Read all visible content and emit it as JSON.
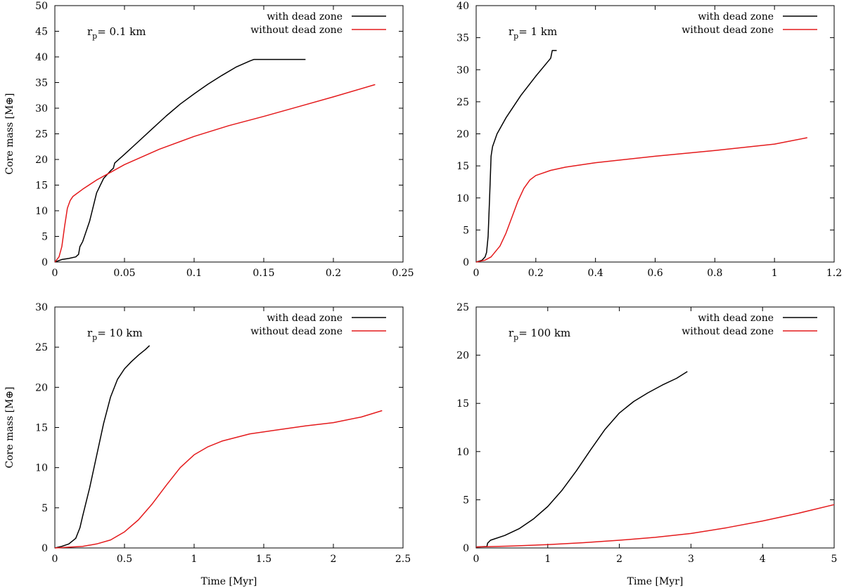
{
  "chart_data": [
    {
      "type": "line",
      "annotation": {
        "main": "r",
        "sub": "p",
        "rest": "= 0.1 km"
      },
      "xlabel": "",
      "ylabel": "Core mass [M⊕]",
      "xlim": [
        0,
        0.25
      ],
      "ylim": [
        0,
        50
      ],
      "xticks": [
        0,
        0.05,
        0.1,
        0.15,
        0.2,
        0.25
      ],
      "xtick_labels": [
        "0",
        "0.05",
        "0.1",
        "0.15",
        "0.2",
        "0.25"
      ],
      "yticks": [
        0,
        5,
        10,
        15,
        20,
        25,
        30,
        35,
        40,
        45,
        50
      ],
      "ytick_labels": [
        "0",
        "5",
        "10",
        "15",
        "20",
        "25",
        "30",
        "35",
        "40",
        "45",
        "50"
      ],
      "legend_position": "top-right",
      "series": [
        {
          "name": "with dead zone",
          "color": "#000000",
          "x": [
            0,
            0.005,
            0.01,
            0.015,
            0.017,
            0.018,
            0.02,
            0.025,
            0.03,
            0.035,
            0.04,
            0.042,
            0.043,
            0.05,
            0.06,
            0.07,
            0.08,
            0.09,
            0.1,
            0.11,
            0.12,
            0.13,
            0.14,
            0.143,
            0.18
          ],
          "y": [
            0,
            0.5,
            0.7,
            1.0,
            1.5,
            3.0,
            4.0,
            8.0,
            13.5,
            16.3,
            17.8,
            18.3,
            19.3,
            21.0,
            23.5,
            26.0,
            28.5,
            30.8,
            32.8,
            34.7,
            36.4,
            38.0,
            39.2,
            39.5,
            39.5
          ]
        },
        {
          "name": "without dead zone",
          "color": "#e41a1c",
          "x": [
            0,
            0.003,
            0.005,
            0.007,
            0.009,
            0.011,
            0.013,
            0.015,
            0.02,
            0.03,
            0.04,
            0.05,
            0.075,
            0.1,
            0.125,
            0.15,
            0.175,
            0.2,
            0.23
          ],
          "y": [
            0,
            1.0,
            3.0,
            7.0,
            10.5,
            12.0,
            12.8,
            13.2,
            14.2,
            16.0,
            17.5,
            19.0,
            22.0,
            24.5,
            26.6,
            28.4,
            30.3,
            32.2,
            34.6
          ]
        }
      ]
    },
    {
      "type": "line",
      "annotation": {
        "main": "r",
        "sub": "p",
        "rest": "= 1 km"
      },
      "xlabel": "",
      "ylabel": "",
      "xlim": [
        0,
        1.2
      ],
      "ylim": [
        0,
        40
      ],
      "xticks": [
        0,
        0.2,
        0.4,
        0.6,
        0.8,
        1,
        1.2
      ],
      "xtick_labels": [
        "0",
        "0.2",
        "0.4",
        "0.6",
        "0.8",
        "1",
        "1.2"
      ],
      "yticks": [
        0,
        5,
        10,
        15,
        20,
        25,
        30,
        35,
        40
      ],
      "ytick_labels": [
        "0",
        "5",
        "10",
        "15",
        "20",
        "25",
        "30",
        "35",
        "40"
      ],
      "legend_position": "top-right",
      "series": [
        {
          "name": "with dead zone",
          "color": "#000000",
          "x": [
            0,
            0.02,
            0.03,
            0.035,
            0.04,
            0.045,
            0.048,
            0.05,
            0.055,
            0.07,
            0.1,
            0.15,
            0.2,
            0.25,
            0.255,
            0.27
          ],
          "y": [
            0,
            0.3,
            0.8,
            1.5,
            4.0,
            10.0,
            14.0,
            16.5,
            18.0,
            20.0,
            22.5,
            26.0,
            29.0,
            31.8,
            33.0,
            33.0
          ]
        },
        {
          "name": "without dead zone",
          "color": "#e41a1c",
          "x": [
            0,
            0.03,
            0.05,
            0.08,
            0.1,
            0.12,
            0.14,
            0.16,
            0.18,
            0.2,
            0.25,
            0.3,
            0.4,
            0.6,
            0.8,
            1.0,
            1.11
          ],
          "y": [
            0,
            0.3,
            0.8,
            2.5,
            4.5,
            7.0,
            9.5,
            11.5,
            12.8,
            13.5,
            14.3,
            14.8,
            15.5,
            16.5,
            17.4,
            18.4,
            19.4
          ]
        }
      ]
    },
    {
      "type": "line",
      "annotation": {
        "main": "r",
        "sub": "p",
        "rest": "= 10 km"
      },
      "xlabel": "Time [Myr]",
      "ylabel": "Core mass [M⊕]",
      "xlim": [
        0,
        2.5
      ],
      "ylim": [
        0,
        30
      ],
      "xticks": [
        0,
        0.5,
        1,
        1.5,
        2,
        2.5
      ],
      "xtick_labels": [
        "0",
        "0.5",
        "1",
        "1.5",
        "2",
        "2.5"
      ],
      "yticks": [
        0,
        5,
        10,
        15,
        20,
        25,
        30
      ],
      "ytick_labels": [
        "0",
        "5",
        "10",
        "15",
        "20",
        "25",
        "30"
      ],
      "legend_position": "top-right",
      "series": [
        {
          "name": "with dead zone",
          "color": "#000000",
          "x": [
            0,
            0.05,
            0.1,
            0.15,
            0.18,
            0.2,
            0.25,
            0.3,
            0.35,
            0.4,
            0.45,
            0.5,
            0.55,
            0.6,
            0.65,
            0.68
          ],
          "y": [
            0,
            0.2,
            0.5,
            1.2,
            2.5,
            4.0,
            7.5,
            11.5,
            15.5,
            18.8,
            21.0,
            22.3,
            23.2,
            24.0,
            24.7,
            25.2
          ]
        },
        {
          "name": "without dead zone",
          "color": "#e41a1c",
          "x": [
            0,
            0.2,
            0.3,
            0.4,
            0.5,
            0.6,
            0.7,
            0.8,
            0.9,
            1.0,
            1.1,
            1.2,
            1.4,
            1.6,
            1.8,
            2.0,
            2.2,
            2.35
          ],
          "y": [
            0,
            0.2,
            0.5,
            1.0,
            2.0,
            3.5,
            5.5,
            7.8,
            10.0,
            11.6,
            12.6,
            13.3,
            14.2,
            14.7,
            15.2,
            15.6,
            16.3,
            17.1
          ]
        }
      ]
    },
    {
      "type": "line",
      "annotation": {
        "main": "r",
        "sub": "p",
        "rest": "= 100 km"
      },
      "xlabel": "Time [Myr]",
      "ylabel": "",
      "xlim": [
        0,
        5
      ],
      "ylim": [
        0,
        25
      ],
      "xticks": [
        0,
        1,
        2,
        3,
        4,
        5
      ],
      "xtick_labels": [
        "0",
        "1",
        "2",
        "3",
        "4",
        "5"
      ],
      "yticks": [
        0,
        5,
        10,
        15,
        20,
        25
      ],
      "ytick_labels": [
        "0",
        "5",
        "10",
        "15",
        "20",
        "25"
      ],
      "legend_position": "top-right",
      "series": [
        {
          "name": "with dead zone",
          "color": "#000000",
          "x": [
            0,
            0.15,
            0.16,
            0.2,
            0.4,
            0.6,
            0.8,
            1.0,
            1.2,
            1.4,
            1.6,
            1.8,
            2.0,
            2.2,
            2.4,
            2.6,
            2.8,
            2.95
          ],
          "y": [
            0.1,
            0.15,
            0.5,
            0.8,
            1.3,
            2.0,
            3.0,
            4.3,
            6.0,
            8.0,
            10.2,
            12.3,
            14.0,
            15.2,
            16.1,
            16.9,
            17.6,
            18.3
          ]
        },
        {
          "name": "without dead zone",
          "color": "#e41a1c",
          "x": [
            0,
            0.5,
            1.0,
            1.5,
            2.0,
            2.5,
            3.0,
            3.5,
            4.0,
            4.5,
            5.0
          ],
          "y": [
            0.1,
            0.2,
            0.35,
            0.55,
            0.8,
            1.1,
            1.5,
            2.1,
            2.8,
            3.6,
            4.5
          ]
        }
      ]
    }
  ]
}
